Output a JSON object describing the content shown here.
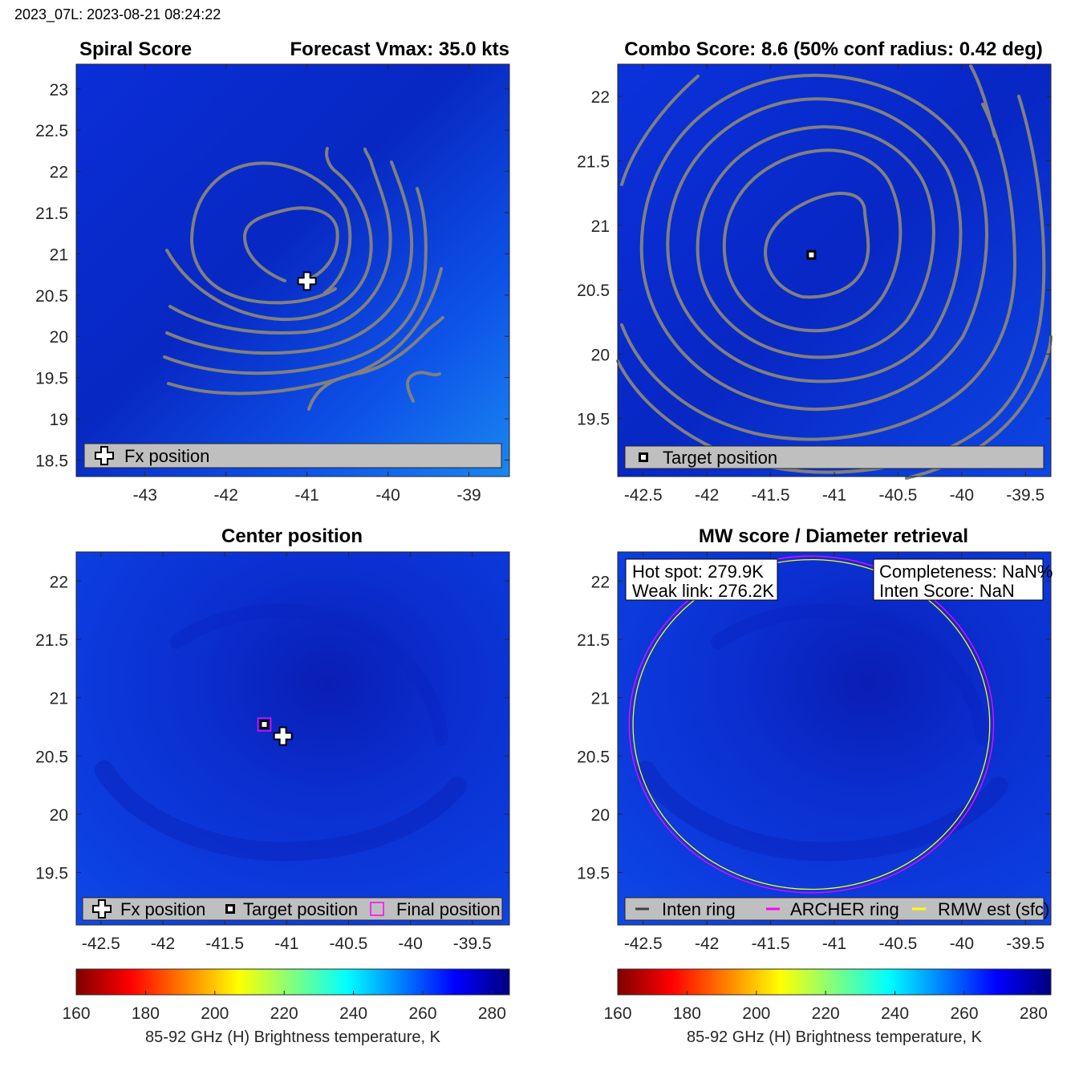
{
  "header": "2023_07L: 2023-08-21 08:24:22",
  "colors": {
    "contour": "#808080",
    "legend_bg": "#bfbfbf",
    "archer_ring": "#ff00ff",
    "rmw_ring": "#ffff00",
    "inten_ring": "#404040"
  },
  "chart_data": [
    {
      "id": "spiral",
      "type": "heatmap",
      "title_left": "Spiral Score",
      "title_right": "Forecast Vmax: 35.0 kts",
      "xlim": [
        -43.85,
        -38.5
      ],
      "ylim": [
        18.3,
        23.3
      ],
      "xticks": [
        -43,
        -42,
        -41,
        -40,
        -39
      ],
      "xtick_labels": [
        "-43",
        "-42",
        "-41",
        "-40",
        "-39"
      ],
      "yticks": [
        18.5,
        19,
        19.5,
        20,
        20.5,
        21,
        21.5,
        22,
        22.5,
        23
      ],
      "ytick_labels": [
        "18.5",
        "19",
        "19.5",
        "20",
        "20.5",
        "21",
        "21.5",
        "22",
        "22.5",
        "23"
      ],
      "markers": [
        {
          "kind": "cross",
          "name": "Fx position",
          "x": -41.0,
          "y": 20.67
        }
      ],
      "legend": [
        {
          "kind": "cross",
          "label": "Fx position"
        }
      ],
      "legend_location": "bottom"
    },
    {
      "id": "combo",
      "type": "heatmap",
      "title": "Combo Score: 8.6  (50% conf radius: 0.42 deg)",
      "xlim": [
        -42.7,
        -39.3
      ],
      "ylim": [
        19.05,
        22.25
      ],
      "xticks": [
        -42.5,
        -42,
        -41.5,
        -41,
        -40.5,
        -40,
        -39.5
      ],
      "xtick_labels": [
        "-42.5",
        "-42",
        "-41.5",
        "-41",
        "-40.5",
        "-40",
        "-39.5"
      ],
      "yticks": [
        19.5,
        20,
        20.5,
        21,
        21.5,
        22
      ],
      "ytick_labels": [
        "19.5",
        "20",
        "20.5",
        "21",
        "21.5",
        "22"
      ],
      "markers": [
        {
          "kind": "square",
          "name": "Target position",
          "x": -41.18,
          "y": 20.77
        }
      ],
      "legend": [
        {
          "kind": "square",
          "label": "Target position"
        }
      ],
      "legend_location": "bottom"
    },
    {
      "id": "center",
      "type": "heatmap",
      "title": "Center position",
      "xlim": [
        -42.7,
        -39.2
      ],
      "ylim": [
        19.05,
        22.25
      ],
      "xticks": [
        -42.5,
        -42,
        -41.5,
        -41,
        -40.5,
        -40,
        -39.5
      ],
      "xtick_labels": [
        "-42.5",
        "-42",
        "-41.5",
        "-41",
        "-40.5",
        "-40",
        "-39.5"
      ],
      "yticks": [
        19.5,
        20,
        20.5,
        21,
        21.5,
        22
      ],
      "ytick_labels": [
        "19.5",
        "20",
        "20.5",
        "21",
        "21.5",
        "22"
      ],
      "markers": [
        {
          "kind": "magenta-square",
          "name": "Final position",
          "x": -41.18,
          "y": 20.77
        },
        {
          "kind": "square",
          "name": "Target position",
          "x": -41.18,
          "y": 20.77
        },
        {
          "kind": "cross",
          "name": "Fx position",
          "x": -41.03,
          "y": 20.67
        }
      ],
      "legend": [
        {
          "kind": "cross",
          "label": "Fx position"
        },
        {
          "kind": "square",
          "label": "Target position"
        },
        {
          "kind": "magenta-square",
          "label": "Final position"
        }
      ],
      "legend_location": "bottom"
    },
    {
      "id": "mw",
      "type": "heatmap",
      "title": "MW score / Diameter retrieval",
      "xlim": [
        -42.7,
        -39.3
      ],
      "ylim": [
        19.05,
        22.25
      ],
      "xticks": [
        -42.5,
        -42,
        -41.5,
        -41,
        -40.5,
        -40,
        -39.5
      ],
      "xtick_labels": [
        "-42.5",
        "-42",
        "-41.5",
        "-41",
        "-40.5",
        "-40",
        "-39.5"
      ],
      "yticks": [
        19.5,
        20,
        20.5,
        21,
        21.5,
        22
      ],
      "ytick_labels": [
        "19.5",
        "20",
        "20.5",
        "21",
        "21.5",
        "22"
      ],
      "info_left": [
        "Hot spot: 279.9K",
        "Weak link: 276.2K"
      ],
      "info_right": [
        "Completeness: NaN%",
        "Inten Score: NaN"
      ],
      "rings": [
        {
          "name": "ARCHER ring",
          "cx": -41.18,
          "cy": 20.77,
          "r": 1.43
        },
        {
          "name": "RMW est (sfc)",
          "cx": -41.18,
          "cy": 20.77,
          "r": 1.4
        }
      ],
      "legend": [
        {
          "kind": "line-dark",
          "label": "Inten ring"
        },
        {
          "kind": "line-magenta",
          "label": "ARCHER ring"
        },
        {
          "kind": "line-yellow",
          "label": "RMW est (sfc)"
        }
      ],
      "legend_location": "bottom"
    }
  ],
  "colorbars": [
    {
      "id": "cbar-left",
      "clim": [
        160,
        285
      ],
      "ticks": [
        160,
        180,
        200,
        220,
        240,
        260,
        280
      ],
      "tick_labels": [
        "160",
        "180",
        "200",
        "220",
        "240",
        "260",
        "280"
      ],
      "label": "85-92 GHz (H) Brightness temperature, K"
    },
    {
      "id": "cbar-right",
      "clim": [
        160,
        285
      ],
      "ticks": [
        160,
        180,
        200,
        220,
        240,
        260,
        280
      ],
      "tick_labels": [
        "160",
        "180",
        "200",
        "220",
        "240",
        "260",
        "280"
      ],
      "label": "85-92 GHz (H) Brightness temperature, K"
    }
  ]
}
